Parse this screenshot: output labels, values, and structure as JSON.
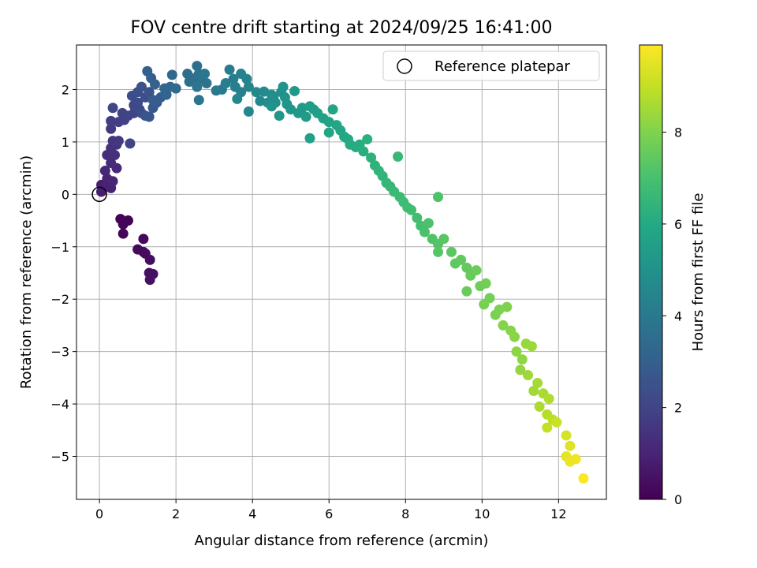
{
  "chart_data": {
    "type": "scatter",
    "title": "FOV centre drift starting at 2024/09/25 16:41:00",
    "xlabel": "Angular distance from reference (arcmin)",
    "ylabel": "Rotation from reference (arcmin)",
    "xlim": [
      -0.6,
      13.25
    ],
    "ylim": [
      -5.82,
      2.85
    ],
    "xticks": [
      0,
      2,
      4,
      6,
      8,
      10,
      12
    ],
    "yticks": [
      -5,
      -4,
      -3,
      -2,
      -1,
      0,
      1,
      2
    ],
    "grid": true,
    "legend": {
      "position": "top-right",
      "entries": [
        "Reference platepar"
      ]
    },
    "reference_point": {
      "name": "Reference platepar",
      "x": 0.0,
      "y": 0.0
    },
    "colorbar": {
      "label": "Hours from first FF file",
      "colormap": "viridis",
      "range": [
        0,
        9.9
      ],
      "ticks": [
        0,
        2,
        4,
        6,
        8
      ]
    },
    "series": [
      {
        "name": "",
        "points": [
          [
            0.55,
            -0.47,
            0.05
          ],
          [
            0.75,
            -0.5,
            0.1
          ],
          [
            0.62,
            -0.57,
            0.12
          ],
          [
            0.62,
            -0.75,
            0.15
          ],
          [
            1.15,
            -0.85,
            0.2
          ],
          [
            1.0,
            -1.05,
            0.25
          ],
          [
            1.15,
            -1.1,
            0.28
          ],
          [
            1.2,
            -1.13,
            0.3
          ],
          [
            1.32,
            -1.25,
            0.35
          ],
          [
            1.3,
            -1.5,
            0.4
          ],
          [
            1.4,
            -1.52,
            0.42
          ],
          [
            1.32,
            -1.63,
            0.45
          ],
          [
            0.05,
            0.05,
            0.8
          ],
          [
            0.05,
            0.18,
            0.85
          ],
          [
            0.2,
            0.15,
            0.9
          ],
          [
            0.3,
            0.12,
            0.95
          ],
          [
            0.2,
            0.3,
            1.0
          ],
          [
            0.35,
            0.25,
            1.05
          ],
          [
            0.15,
            0.45,
            1.1
          ],
          [
            0.45,
            0.5,
            1.15
          ],
          [
            0.3,
            0.6,
            1.2
          ],
          [
            0.2,
            0.75,
            1.3
          ],
          [
            0.4,
            0.75,
            1.35
          ],
          [
            0.3,
            0.88,
            1.4
          ],
          [
            0.45,
            0.95,
            1.5
          ],
          [
            0.35,
            1.02,
            1.55
          ],
          [
            0.5,
            1.02,
            1.6
          ],
          [
            0.3,
            1.25,
            1.7
          ],
          [
            0.3,
            1.4,
            1.8
          ],
          [
            0.5,
            1.38,
            1.85
          ],
          [
            0.65,
            1.42,
            1.9
          ],
          [
            0.6,
            1.55,
            1.95
          ],
          [
            0.75,
            1.5,
            2.0
          ],
          [
            0.8,
            0.97,
            2.0
          ],
          [
            0.35,
            1.65,
            2.05
          ],
          [
            0.9,
            1.55,
            2.1
          ],
          [
            0.9,
            1.7,
            2.15
          ],
          [
            1.05,
            1.62,
            2.2
          ],
          [
            1.0,
            1.75,
            2.25
          ],
          [
            1.1,
            1.55,
            2.3
          ],
          [
            0.85,
            1.88,
            2.3
          ],
          [
            1.2,
            1.85,
            2.4
          ],
          [
            1.0,
            1.95,
            2.4
          ],
          [
            1.3,
            1.95,
            2.5
          ],
          [
            1.1,
            2.05,
            2.55
          ],
          [
            1.2,
            1.5,
            2.6
          ],
          [
            1.3,
            1.48,
            2.65
          ],
          [
            1.4,
            1.65,
            2.7
          ],
          [
            1.5,
            1.75,
            2.8
          ],
          [
            1.6,
            1.85,
            2.9
          ],
          [
            1.4,
            1.8,
            2.9
          ],
          [
            1.35,
            2.22,
            3.0
          ],
          [
            1.25,
            2.35,
            3.0
          ],
          [
            1.45,
            2.1,
            3.1
          ],
          [
            1.75,
            1.9,
            3.2
          ],
          [
            1.85,
            2.05,
            3.25
          ],
          [
            1.7,
            2.02,
            3.3
          ],
          [
            1.9,
            2.28,
            3.35
          ],
          [
            2.0,
            2.02,
            3.4
          ],
          [
            2.3,
            2.3,
            3.5
          ],
          [
            2.5,
            2.22,
            3.55
          ],
          [
            2.35,
            2.15,
            3.6
          ],
          [
            2.55,
            2.45,
            3.65
          ],
          [
            2.6,
            2.3,
            3.7
          ],
          [
            2.7,
            2.2,
            3.75
          ],
          [
            2.8,
            2.12,
            3.8
          ],
          [
            2.55,
            2.05,
            3.85
          ],
          [
            2.6,
            1.8,
            3.9
          ],
          [
            2.75,
            2.3,
            3.95
          ],
          [
            3.05,
            1.98,
            4.0
          ],
          [
            3.2,
            2.0,
            4.05
          ],
          [
            3.4,
            2.38,
            4.1
          ],
          [
            3.3,
            2.12,
            4.15
          ],
          [
            3.5,
            2.2,
            4.2
          ],
          [
            3.55,
            2.05,
            4.25
          ],
          [
            3.7,
            1.95,
            4.3
          ],
          [
            3.7,
            2.3,
            4.35
          ],
          [
            3.85,
            2.2,
            4.4
          ],
          [
            3.9,
            2.05,
            4.45
          ],
          [
            3.6,
            1.82,
            4.5
          ],
          [
            3.9,
            1.58,
            4.55
          ],
          [
            4.1,
            1.95,
            4.6
          ],
          [
            4.2,
            1.78,
            4.65
          ],
          [
            4.3,
            1.96,
            4.7
          ],
          [
            4.4,
            1.75,
            4.75
          ],
          [
            4.5,
            1.9,
            4.8
          ],
          [
            4.55,
            1.83,
            4.85
          ],
          [
            4.6,
            1.75,
            4.9
          ],
          [
            4.75,
            1.95,
            4.95
          ],
          [
            4.8,
            2.05,
            5.0
          ],
          [
            4.5,
            1.68,
            5.0
          ],
          [
            4.85,
            1.85,
            5.05
          ],
          [
            4.9,
            1.72,
            5.1
          ],
          [
            4.7,
            1.5,
            5.15
          ],
          [
            5.0,
            1.62,
            5.2
          ],
          [
            5.1,
            1.97,
            5.25
          ],
          [
            5.2,
            1.55,
            5.3
          ],
          [
            5.3,
            1.65,
            5.35
          ],
          [
            5.4,
            1.48,
            5.4
          ],
          [
            5.5,
            1.68,
            5.45
          ],
          [
            5.6,
            1.62,
            5.5
          ],
          [
            5.7,
            1.55,
            5.55
          ],
          [
            5.5,
            1.07,
            5.6
          ],
          [
            5.85,
            1.45,
            5.65
          ],
          [
            6.0,
            1.38,
            5.7
          ],
          [
            6.1,
            1.62,
            5.75
          ],
          [
            6.0,
            1.18,
            5.8
          ],
          [
            6.2,
            1.32,
            5.85
          ],
          [
            6.3,
            1.22,
            5.9
          ],
          [
            6.4,
            1.1,
            5.95
          ],
          [
            6.5,
            1.05,
            6.0
          ],
          [
            6.55,
            0.95,
            6.05
          ],
          [
            6.7,
            0.9,
            6.1
          ],
          [
            6.8,
            0.95,
            6.15
          ],
          [
            6.9,
            0.82,
            6.2
          ],
          [
            7.0,
            1.05,
            6.25
          ],
          [
            7.1,
            0.7,
            6.3
          ],
          [
            7.2,
            0.55,
            6.35
          ],
          [
            7.3,
            0.45,
            6.4
          ],
          [
            7.4,
            0.35,
            6.45
          ],
          [
            7.5,
            0.22,
            6.5
          ],
          [
            7.6,
            0.15,
            6.55
          ],
          [
            7.8,
            0.72,
            6.6
          ],
          [
            7.7,
            0.05,
            6.65
          ],
          [
            7.85,
            -0.05,
            6.7
          ],
          [
            7.95,
            -0.15,
            6.75
          ],
          [
            8.05,
            -0.25,
            6.8
          ],
          [
            8.15,
            -0.3,
            6.85
          ],
          [
            8.3,
            -0.45,
            6.9
          ],
          [
            8.4,
            -0.6,
            6.95
          ],
          [
            8.5,
            -0.72,
            7.0
          ],
          [
            8.6,
            -0.55,
            7.05
          ],
          [
            8.85,
            -0.05,
            7.1
          ],
          [
            8.7,
            -0.85,
            7.15
          ],
          [
            8.85,
            -0.95,
            7.2
          ],
          [
            8.85,
            -1.1,
            7.25
          ],
          [
            9.0,
            -0.85,
            7.3
          ],
          [
            9.2,
            -1.1,
            7.35
          ],
          [
            9.3,
            -1.32,
            7.4
          ],
          [
            9.45,
            -1.25,
            7.45
          ],
          [
            9.6,
            -1.4,
            7.5
          ],
          [
            9.7,
            -1.55,
            7.55
          ],
          [
            9.6,
            -1.85,
            7.6
          ],
          [
            9.85,
            -1.45,
            7.65
          ],
          [
            9.95,
            -1.75,
            7.7
          ],
          [
            10.1,
            -1.7,
            7.75
          ],
          [
            10.2,
            -1.98,
            7.8
          ],
          [
            10.05,
            -2.1,
            7.85
          ],
          [
            10.35,
            -2.3,
            7.9
          ],
          [
            10.45,
            -2.2,
            7.95
          ],
          [
            10.65,
            -2.15,
            8.0
          ],
          [
            10.55,
            -2.5,
            8.05
          ],
          [
            10.75,
            -2.6,
            8.1
          ],
          [
            10.85,
            -2.72,
            8.15
          ],
          [
            10.9,
            -3.0,
            8.2
          ],
          [
            11.05,
            -3.15,
            8.25
          ],
          [
            11.0,
            -3.35,
            8.3
          ],
          [
            11.15,
            -2.85,
            8.35
          ],
          [
            11.3,
            -2.9,
            8.4
          ],
          [
            11.2,
            -3.45,
            8.45
          ],
          [
            11.35,
            -3.75,
            8.5
          ],
          [
            11.45,
            -3.6,
            8.55
          ],
          [
            11.6,
            -3.8,
            8.6
          ],
          [
            11.5,
            -4.05,
            8.65
          ],
          [
            11.75,
            -3.9,
            8.7
          ],
          [
            11.7,
            -4.2,
            8.8
          ],
          [
            11.85,
            -4.3,
            8.9
          ],
          [
            11.7,
            -4.45,
            9.0
          ],
          [
            11.95,
            -4.35,
            9.1
          ],
          [
            12.2,
            -4.6,
            9.3
          ],
          [
            12.3,
            -4.8,
            9.4
          ],
          [
            12.2,
            -5.0,
            9.5
          ],
          [
            12.3,
            -5.1,
            9.6
          ],
          [
            12.45,
            -5.05,
            9.7
          ],
          [
            12.65,
            -5.42,
            9.85
          ]
        ]
      }
    ]
  }
}
